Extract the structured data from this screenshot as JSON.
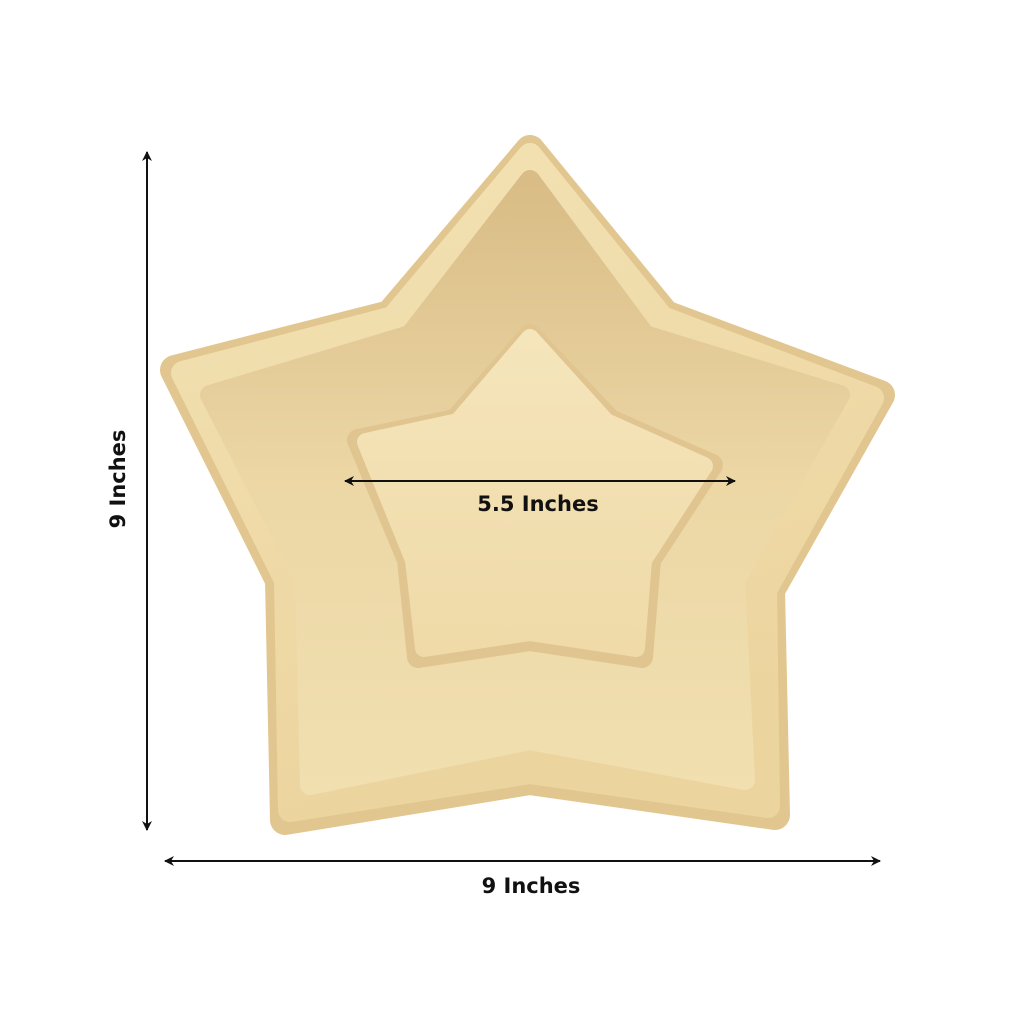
{
  "product": {
    "icon": "star-shaped-plate",
    "plate_color": "#f0dcaa",
    "annotation_color": "#111111"
  },
  "dimensions": {
    "height_label": "9 Inches",
    "width_label": "9 Inches",
    "inner_width_label": "5.5 Inches"
  }
}
